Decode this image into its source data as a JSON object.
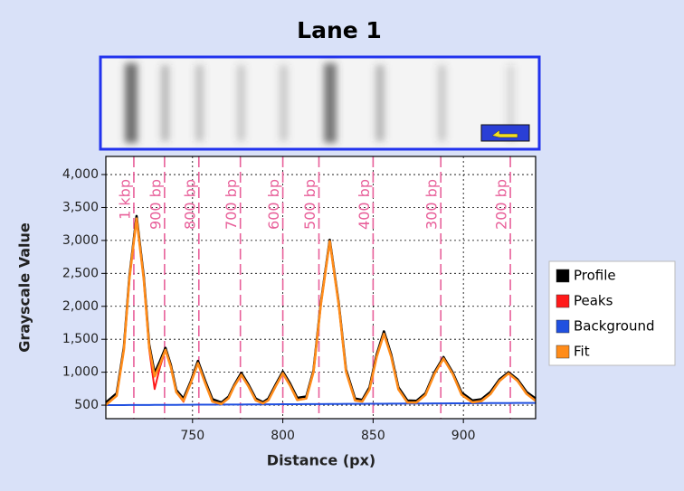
{
  "chart_data": {
    "type": "line",
    "title": "Lane 1",
    "xlabel": "Distance (px)",
    "ylabel": "Grayscale Value",
    "xlim": [
      702,
      940
    ],
    "ylim": [
      295,
      4275
    ],
    "xticks": [
      750,
      800,
      850,
      900
    ],
    "yticks": [
      500,
      {
        "value": 1000,
        "label": "1,000"
      },
      {
        "value": 1500,
        "label": "1,500"
      },
      {
        "value": 2000,
        "label": "2,000"
      },
      {
        "value": 2500,
        "label": "2,500"
      },
      {
        "value": 3000,
        "label": "3,000"
      },
      {
        "value": 3500,
        "label": "3,500"
      },
      {
        "value": 4000,
        "label": "4,000"
      }
    ],
    "grid": true,
    "legend": "right",
    "markers": [
      {
        "x": 717.5,
        "label": "1 kbp"
      },
      {
        "x": 734.5,
        "label": "900 bp"
      },
      {
        "x": 753.5,
        "label": "800 bp"
      },
      {
        "x": 776.5,
        "label": "700 bp"
      },
      {
        "x": 800,
        "label": "600 bp"
      },
      {
        "x": 820,
        "label": "500 bp"
      },
      {
        "x": 850,
        "label": "400 bp"
      },
      {
        "x": 887.5,
        "label": "300 bp"
      },
      {
        "x": 926,
        "label": "200 bp"
      }
    ],
    "x": [
      702,
      708,
      712,
      715,
      719,
      723,
      726,
      729,
      732,
      735,
      738,
      741,
      745,
      749,
      753,
      757,
      761,
      766,
      770,
      773,
      777,
      781,
      785,
      789,
      792,
      796,
      800,
      804,
      808,
      813,
      817,
      821,
      826,
      831,
      835,
      840,
      844,
      848,
      852,
      856,
      860,
      864,
      869,
      874,
      879,
      884,
      889,
      894,
      899,
      905,
      910,
      915,
      920,
      925,
      930,
      935,
      940
    ],
    "series": [
      {
        "name": "Profile",
        "color": "#000000",
        "width": 2.6,
        "values": [
          540,
          680,
          1380,
          2440,
          3370,
          2450,
          1420,
          990,
          1170,
          1370,
          1110,
          730,
          600,
          860,
          1170,
          870,
          590,
          540,
          630,
          800,
          990,
          810,
          600,
          545,
          600,
          810,
          1010,
          830,
          610,
          630,
          1030,
          2040,
          3010,
          2040,
          1040,
          600,
          580,
          770,
          1270,
          1620,
          1270,
          770,
          570,
          565,
          680,
          1000,
          1230,
          1000,
          690,
          570,
          590,
          700,
          890,
          1000,
          890,
          700,
          600
        ]
      },
      {
        "name": "Peaks",
        "color": "#ff1a1a",
        "width": 2,
        "values": [
          502,
          643,
          1344,
          2409,
          3332,
          2410,
          1346,
          745,
          1079,
          1339,
          1080,
          696,
          552,
          834,
          1137,
          835,
          554,
          519,
          606,
          783,
          960,
          784,
          573,
          527,
          574,
          786,
          984,
          799,
          578,
          600,
          1005,
          2016,
          2988,
          2017,
          1008,
          569,
          555,
          739,
          1235,
          1582,
          1237,
          741,
          540,
          541,
          655,
          976,
          1207,
          978,
          658,
          539,
          562,
          669,
          866,
          982,
          868,
          671,
          566
        ]
      },
      {
        "name": "Background",
        "color": "#2050e0",
        "width": 2,
        "values": [
          500,
          501,
          501,
          502,
          502,
          503,
          503,
          504,
          504,
          504,
          505,
          505,
          506,
          506,
          507,
          507,
          508,
          509,
          509,
          510,
          510,
          511,
          512,
          512,
          513,
          513,
          514,
          514,
          515,
          516,
          516,
          517,
          518,
          518,
          519,
          520,
          520,
          521,
          521,
          522,
          523,
          523,
          524,
          525,
          525,
          526,
          527,
          528,
          528,
          529,
          530,
          531,
          531,
          532,
          533,
          533,
          534
        ]
      },
      {
        "name": "Fit",
        "color": "#ff8c1a",
        "width": 2.6,
        "values": [
          502,
          643,
          1344,
          2409,
          3332,
          2412,
          1377,
          936,
          1123,
          1339,
          1080,
          698,
          566,
          834,
          1137,
          835,
          554,
          519,
          606,
          783,
          960,
          784,
          573,
          527,
          574,
          786,
          984,
          799,
          578,
          602,
          1005,
          2016,
          2988,
          2017,
          1008,
          571,
          555,
          739,
          1235,
          1582,
          1237,
          741,
          541,
          541,
          655,
          976,
          1207,
          978,
          658,
          543,
          562,
          669,
          866,
          982,
          868,
          671,
          566
        ]
      }
    ]
  }
}
